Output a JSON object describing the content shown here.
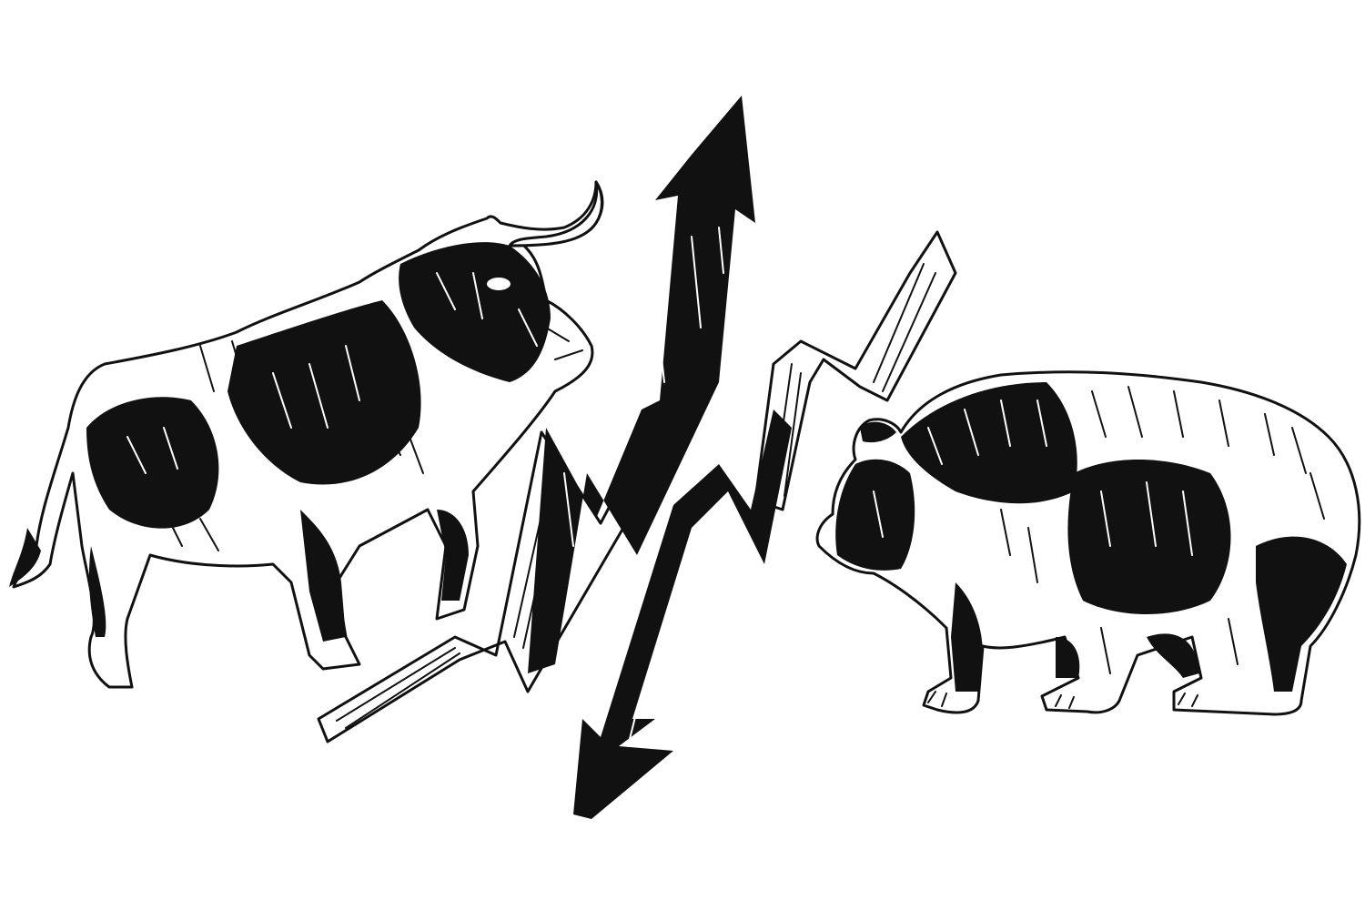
{
  "scene": {
    "background": "#ffffff",
    "ink_color": "#111111",
    "subjects": [
      "bull-illustration",
      "bear-illustration",
      "up-arrow-icon",
      "down-arrow-icon"
    ]
  }
}
